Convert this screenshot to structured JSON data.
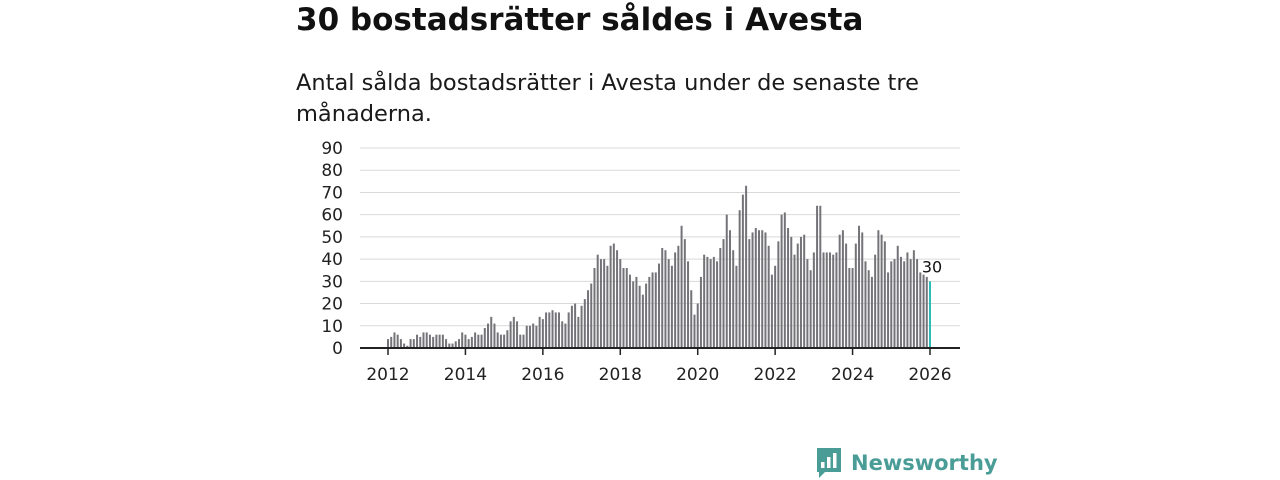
{
  "title": "30 bostadsrätter såldes i Avesta",
  "subtitle": "Antal sålda bostadsrätter i Avesta under de senaste tre månaderna.",
  "brand": {
    "name": "Newsworthy"
  },
  "colors": {
    "bar": "#737378",
    "highlight": "#2bbdb6",
    "grid": "#d9d9d9",
    "axis": "#222222",
    "brand": "#4a9d97"
  },
  "chart_data": {
    "type": "bar",
    "title": "30 bostadsrätter såldes i Avesta",
    "xlabel": "",
    "ylabel": "",
    "ylim": [
      0,
      90
    ],
    "yticks": [
      0,
      10,
      20,
      30,
      40,
      50,
      60,
      70,
      80,
      90
    ],
    "xticks": [
      "2012",
      "2014",
      "2016",
      "2018",
      "2020",
      "2022",
      "2024",
      "2026"
    ],
    "start": "2012-01",
    "end": "2026-01",
    "highlight_label": "30",
    "values": [
      4,
      5,
      7,
      6,
      4,
      2,
      1,
      4,
      4,
      6,
      5,
      7,
      7,
      6,
      5,
      6,
      6,
      6,
      4,
      2,
      2,
      3,
      4,
      7,
      6,
      4,
      5,
      7,
      6,
      6,
      9,
      11,
      14,
      11,
      7,
      6,
      6,
      8,
      12,
      14,
      12,
      6,
      6,
      10,
      10,
      11,
      10,
      14,
      13,
      16,
      16,
      17,
      16,
      16,
      12,
      11,
      16,
      19,
      20,
      14,
      19,
      22,
      26,
      29,
      36,
      42,
      40,
      40,
      37,
      46,
      47,
      44,
      40,
      36,
      36,
      33,
      30,
      32,
      28,
      24,
      29,
      32,
      34,
      34,
      38,
      45,
      44,
      40,
      37,
      43,
      46,
      55,
      49,
      39,
      26,
      15,
      20,
      32,
      42,
      41,
      40,
      41,
      39,
      45,
      49,
      60,
      53,
      44,
      37,
      62,
      69,
      73,
      49,
      52,
      54,
      53,
      53,
      52,
      46,
      33,
      37,
      48,
      60,
      61,
      54,
      50,
      42,
      47,
      50,
      51,
      40,
      35,
      43,
      64,
      64,
      43,
      43,
      43,
      42,
      43,
      51,
      53,
      47,
      36,
      36,
      47,
      55,
      52,
      39,
      35,
      32,
      42,
      53,
      51,
      48,
      34,
      39,
      40,
      46,
      41,
      39,
      43,
      40,
      44,
      40,
      34,
      33,
      32,
      30
    ]
  }
}
